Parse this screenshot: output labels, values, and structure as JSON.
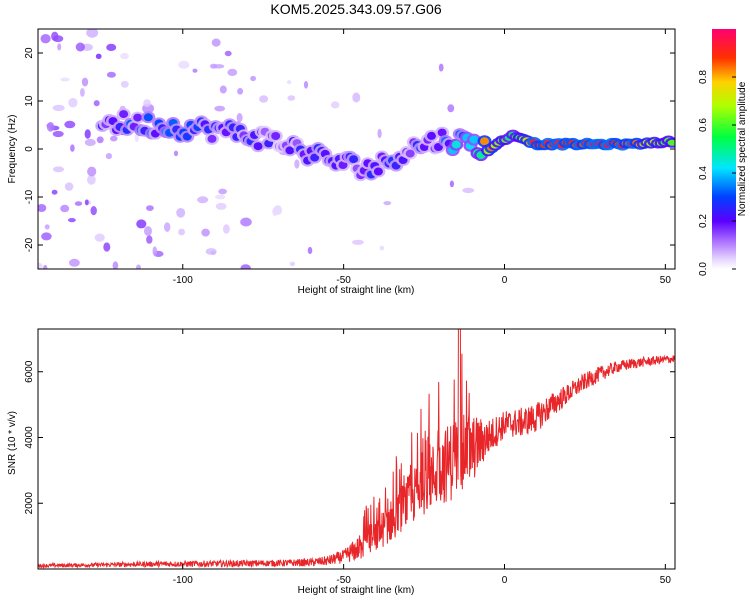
{
  "figure": {
    "title": "KOM5.2025.343.09.57.G06"
  },
  "chart_data": [
    {
      "type": "heatmap",
      "title": "KOM5.2025.343.09.57.G06",
      "xlabel": "Height of straight line (km)",
      "ylabel": "Frequency (Hz)",
      "xlim": [
        -145,
        53
      ],
      "ylim": [
        -25,
        25
      ],
      "xticks": [
        -100,
        -50,
        0,
        50
      ],
      "yticks": [
        -20,
        -10,
        0,
        10,
        20
      ],
      "xtick_labels": [
        "-100",
        "-50",
        "0",
        "50"
      ],
      "ytick_labels": [
        "-20",
        "-10",
        "0",
        "10",
        "20"
      ],
      "colorbar": {
        "label": "Normalized spectral amplitude",
        "range": [
          0,
          1
        ],
        "ticks": [
          0.0,
          0.2,
          0.4,
          0.6,
          0.8
        ],
        "tick_labels": [
          "0.0",
          "0.2",
          "0.4",
          "0.6",
          "0.8"
        ],
        "colormap": "rainbow (white-lavender-purple-blue-cyan-green-yellow-red-magenta)"
      },
      "ridge": [
        {
          "x": -120,
          "freq": 5.5,
          "amp": 0.25
        },
        {
          "x": -110,
          "freq": 5,
          "amp": 0.3
        },
        {
          "x": -100,
          "freq": 4.5,
          "amp": 0.28
        },
        {
          "x": -90,
          "freq": 4,
          "amp": 0.25
        },
        {
          "x": -80,
          "freq": 3,
          "amp": 0.22
        },
        {
          "x": -70,
          "freq": 1.5,
          "amp": 0.2
        },
        {
          "x": -60,
          "freq": -1,
          "amp": 0.22
        },
        {
          "x": -50,
          "freq": -3,
          "amp": 0.24
        },
        {
          "x": -40,
          "freq": -4,
          "amp": 0.25
        },
        {
          "x": -30,
          "freq": 0,
          "amp": 0.22
        },
        {
          "x": -20,
          "freq": 2,
          "amp": 0.25
        },
        {
          "x": -12,
          "freq": 1.5,
          "amp": 0.45
        },
        {
          "x": -5,
          "freq": 0,
          "amp": 0.85
        },
        {
          "x": 3,
          "freq": 3,
          "amp": 0.5
        },
        {
          "x": 10,
          "freq": 1,
          "amp": 0.95
        },
        {
          "x": 20,
          "freq": 1,
          "amp": 0.9
        },
        {
          "x": 30,
          "freq": 1,
          "amp": 0.95
        },
        {
          "x": 40,
          "freq": 1,
          "amp": 0.9
        },
        {
          "x": 50,
          "freq": 1.5,
          "amp": 0.6
        }
      ]
    },
    {
      "type": "line",
      "xlabel": "Height of straight line (km)",
      "ylabel": "SNR (10 * v/v)",
      "xlim": [
        -145,
        53
      ],
      "ylim": [
        0,
        7300
      ],
      "xticks": [
        -100,
        -50,
        0,
        50
      ],
      "yticks": [
        2000,
        4000,
        6000
      ],
      "xtick_labels": [
        "-100",
        "-50",
        "0",
        "50"
      ],
      "ytick_labels": [
        "2000",
        "4000",
        "6000"
      ],
      "series": [
        {
          "name": "SNR",
          "color": "#e8262a",
          "x": [
            -145,
            -130,
            -110,
            -90,
            -70,
            -60,
            -55,
            -50,
            -45,
            -40,
            -35,
            -30,
            -25,
            -20,
            -15,
            -10,
            -5,
            0,
            5,
            10,
            15,
            20,
            25,
            30,
            35,
            40,
            45,
            50,
            53
          ],
          "y": [
            100,
            120,
            150,
            160,
            180,
            200,
            250,
            380,
            650,
            1000,
            1500,
            2050,
            2550,
            3050,
            3400,
            3650,
            4000,
            4400,
            4450,
            4600,
            5000,
            5350,
            5700,
            5950,
            6150,
            6250,
            6320,
            6370,
            6400
          ],
          "noise": [
            60,
            60,
            80,
            100,
            100,
            120,
            150,
            200,
            400,
            500,
            650,
            800,
            900,
            1100,
            1300,
            1050,
            550,
            420,
            450,
            450,
            380,
            300,
            260,
            230,
            180,
            160,
            140,
            130,
            130
          ]
        }
      ]
    }
  ]
}
